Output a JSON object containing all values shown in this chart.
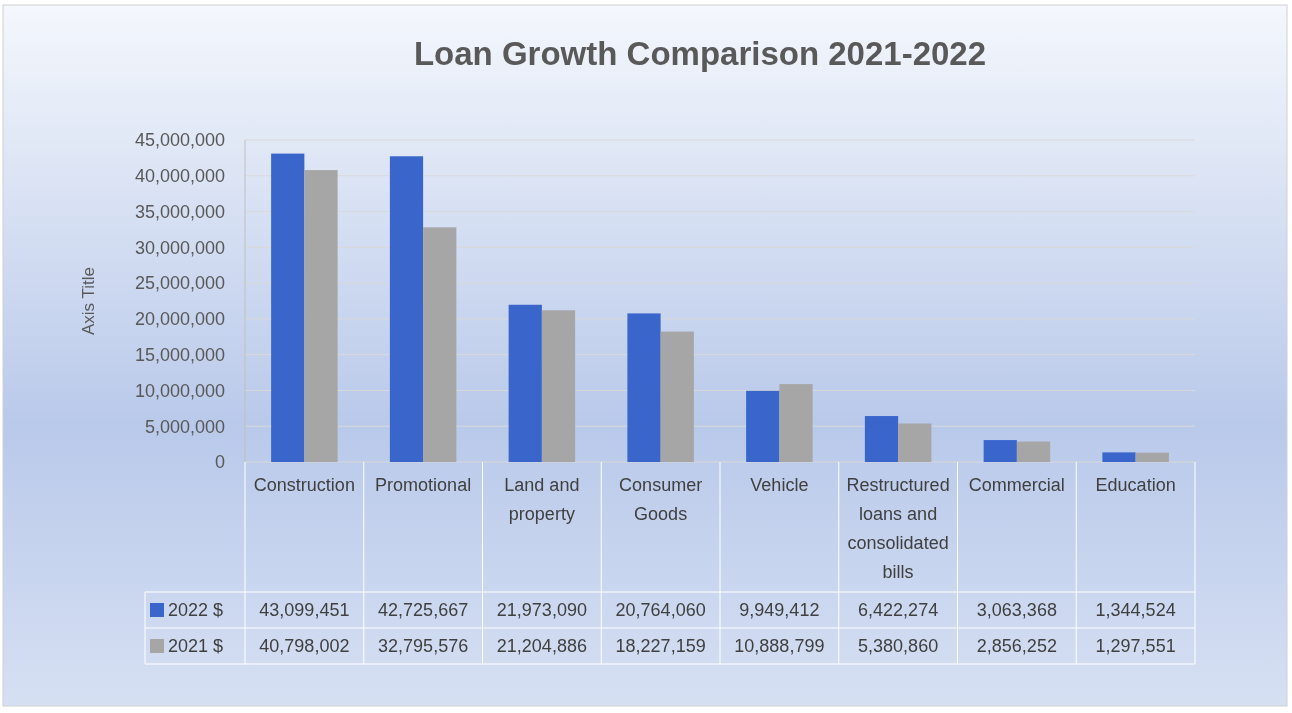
{
  "chart_data": {
    "type": "bar",
    "title": "Loan Growth Comparison 2021-2022",
    "ylabel": "Axis Title",
    "categories": [
      "Construction",
      "Promotional",
      "Land and property",
      "Consumer Goods",
      "Vehicle",
      "Restructured loans and consolidated bills",
      "Commercial",
      "Education"
    ],
    "series": [
      {
        "name": "2022 $",
        "color": "#3a66cc",
        "values": [
          43099451,
          42725667,
          21973090,
          20764060,
          9949412,
          6422274,
          3063368,
          1344524
        ],
        "value_labels": [
          "43,099,451",
          "42,725,667",
          "21,973,090",
          "20,764,060",
          "9,949,412",
          "6,422,274",
          "3,063,368",
          "1,344,524"
        ]
      },
      {
        "name": "2021 $",
        "color": "#a6a6a6",
        "values": [
          40798002,
          32795576,
          21204886,
          18227159,
          10888799,
          5380860,
          2856252,
          1297551
        ],
        "value_labels": [
          "40,798,002",
          "32,795,576",
          "21,204,886",
          "18,227,159",
          "10,888,799",
          "5,380,860",
          "2,856,252",
          "1,297,551"
        ]
      }
    ],
    "ylim": [
      0,
      45000000
    ],
    "yticks": [
      {
        "value": 0,
        "label": "0"
      },
      {
        "value": 5000000,
        "label": "5,000,000"
      },
      {
        "value": 10000000,
        "label": "10,000,000"
      },
      {
        "value": 15000000,
        "label": "15,000,000"
      },
      {
        "value": 20000000,
        "label": "20,000,000"
      },
      {
        "value": 25000000,
        "label": "25,000,000"
      },
      {
        "value": 30000000,
        "label": "30,000,000"
      },
      {
        "value": 35000000,
        "label": "35,000,000"
      },
      {
        "value": 40000000,
        "label": "40,000,000"
      },
      {
        "value": 45000000,
        "label": "45,000,000"
      }
    ],
    "grid": "y",
    "legend": "bottom"
  }
}
